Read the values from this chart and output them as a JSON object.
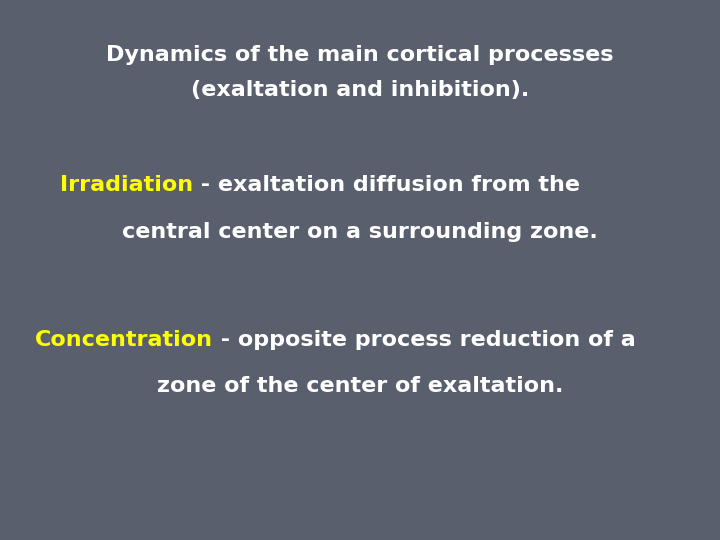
{
  "bg_color": "#5a5f6e",
  "title_line1": "Dynamics of the main cortical processes",
  "title_line2": "(exaltation and inhibition).",
  "title_color": "#ffffff",
  "title_fontsize": 16,
  "irr_keyword": "Irradiation",
  "irr_keyword_color": "#ffff00",
  "irr_rest_line1": " - exaltation diffusion from the",
  "irr_line2": "central center on a surrounding zone.",
  "irr_color": "#ffffff",
  "irr_fontsize": 16,
  "conc_keyword": "Concentration",
  "conc_keyword_color": "#ffff00",
  "conc_rest_line1": " - opposite process reduction of a",
  "conc_line2": "zone of the center of exaltation.",
  "conc_color": "#ffffff",
  "conc_fontsize": 16,
  "figsize": [
    7.2,
    5.4
  ],
  "dpi": 100
}
